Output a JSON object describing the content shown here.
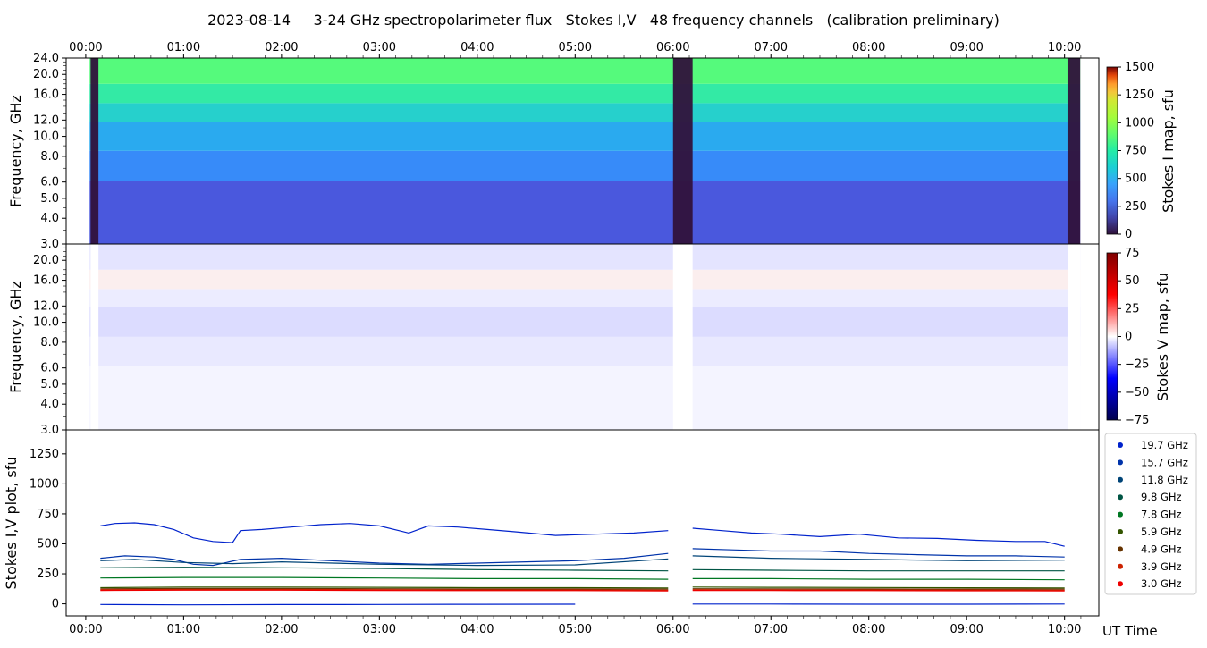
{
  "title": "2023-08-14     3-24 GHz spectropolarimeter flux   Stokes I,V   48 frequency channels   (calibration preliminary)",
  "time_ticks": [
    "00:00",
    "01:00",
    "02:00",
    "03:00",
    "04:00",
    "05:00",
    "06:00",
    "07:00",
    "08:00",
    "09:00",
    "10:00"
  ],
  "time_axis_label": "UT Time",
  "chart_data": [
    {
      "type": "heatmap",
      "name": "stokes-i-map",
      "ylabel": "Frequency, GHz",
      "y_ticks": [
        "24.0",
        "20.0",
        "16.0",
        "12.0",
        "10.0",
        "8.0",
        "6.0",
        "5.0",
        "4.0",
        "3.0"
      ],
      "y_tick_values": [
        24,
        20,
        16,
        12,
        10,
        8,
        6,
        5,
        4,
        3
      ],
      "ylim": [
        3,
        24
      ],
      "y_scale": "log",
      "xlim_hours": [
        -0.2,
        10.35
      ],
      "colorbar_label": "Stokes I map, sfu",
      "colorbar_ticks": [
        "1500",
        "1250",
        "1000",
        "750",
        "500",
        "250",
        "0"
      ],
      "colorbar_values": [
        1500,
        1250,
        1000,
        750,
        500,
        250,
        0
      ],
      "colorbar_range": [
        0,
        1500
      ],
      "colormap": "turbo",
      "bands": [
        {
          "f_low": 3.0,
          "f_high": 6.1,
          "value": 150
        },
        {
          "f_low": 6.1,
          "f_high": 8.5,
          "value": 260
        },
        {
          "f_low": 8.5,
          "f_high": 11.8,
          "value": 330
        },
        {
          "f_low": 11.8,
          "f_high": 14.5,
          "value": 430
        },
        {
          "f_low": 14.5,
          "f_high": 18.0,
          "value": 520
        },
        {
          "f_low": 18.0,
          "f_high": 24.0,
          "value": 620
        }
      ],
      "data_gaps_hours": [
        [
          0.05,
          0.13
        ],
        [
          6.0,
          6.2
        ],
        [
          10.03,
          10.16
        ]
      ]
    },
    {
      "type": "heatmap",
      "name": "stokes-v-map",
      "ylabel": "Frequency, GHz",
      "y_ticks": [
        "20.0",
        "16.0",
        "12.0",
        "10.0",
        "8.0",
        "6.0",
        "5.0",
        "4.0",
        "3.0"
      ],
      "y_tick_values": [
        20,
        16,
        12,
        10,
        8,
        6,
        5,
        4,
        3
      ],
      "ylim": [
        3,
        24
      ],
      "y_scale": "log",
      "colorbar_label": "Stokes V map, sfu",
      "colorbar_ticks": [
        "75",
        "50",
        "25",
        "0",
        "−25",
        "−50",
        "−75"
      ],
      "colorbar_values": [
        75,
        50,
        25,
        0,
        -25,
        -50,
        -75
      ],
      "colorbar_range": [
        -75,
        75
      ],
      "colormap": "seismic"
    },
    {
      "type": "line",
      "name": "stokes-iv-plot",
      "ylabel": "Stokes I,V plot, sfu",
      "y_ticks": [
        "1250",
        "1000",
        "750",
        "500",
        "250",
        "0"
      ],
      "y_tick_values": [
        1250,
        1000,
        750,
        500,
        250,
        0
      ],
      "ylim": [
        -100,
        1450
      ],
      "legend_position": "right",
      "series": [
        {
          "name": "19.7 GHz",
          "color": "#0022cc",
          "x": [
            0.15,
            0.3,
            0.5,
            0.7,
            0.9,
            1.1,
            1.3,
            1.5,
            1.58,
            1.8,
            2.1,
            2.4,
            2.7,
            3.0,
            3.2,
            3.3,
            3.5,
            3.8,
            4.1,
            4.4,
            4.8,
            5.2,
            5.6,
            5.95,
            6.2,
            6.5,
            6.8,
            7.1,
            7.5,
            7.9,
            8.3,
            8.7,
            9.1,
            9.5,
            9.8,
            10.0
          ],
          "y": [
            650,
            670,
            675,
            660,
            620,
            550,
            520,
            510,
            610,
            620,
            640,
            660,
            670,
            650,
            610,
            590,
            650,
            640,
            620,
            600,
            570,
            580,
            590,
            610,
            630,
            610,
            590,
            580,
            560,
            580,
            550,
            545,
            530,
            520,
            520,
            480
          ]
        },
        {
          "name": "15.7 GHz",
          "color": "#0033aa",
          "x": [
            0.15,
            0.4,
            0.7,
            0.9,
            1.1,
            1.3,
            1.58,
            2.0,
            2.5,
            3.0,
            3.5,
            4.0,
            4.5,
            5.0,
            5.5,
            5.95,
            6.2,
            6.6,
            7.0,
            7.5,
            8.0,
            8.5,
            9.0,
            9.5,
            10.0
          ],
          "y": [
            380,
            400,
            390,
            370,
            330,
            320,
            370,
            380,
            360,
            340,
            330,
            340,
            350,
            360,
            380,
            420,
            460,
            450,
            440,
            440,
            420,
            410,
            400,
            400,
            390
          ]
        },
        {
          "name": "11.8 GHz",
          "color": "#004477",
          "x": [
            0.15,
            0.5,
            1.0,
            1.5,
            2.0,
            3.0,
            4.0,
            5.0,
            5.95,
            6.2,
            7.0,
            8.0,
            9.0,
            10.0
          ],
          "y": [
            360,
            370,
            345,
            335,
            350,
            330,
            320,
            325,
            375,
            400,
            380,
            370,
            360,
            365
          ]
        },
        {
          "name": "9.8 GHz",
          "color": "#005544",
          "x": [
            0.15,
            1.0,
            2.0,
            3.0,
            4.0,
            5.0,
            5.95,
            6.2,
            7.0,
            8.0,
            9.0,
            10.0
          ],
          "y": [
            300,
            305,
            300,
            295,
            285,
            280,
            275,
            285,
            280,
            275,
            275,
            275
          ]
        },
        {
          "name": "7.8 GHz",
          "color": "#007722",
          "x": [
            0.15,
            1.0,
            2.0,
            3.0,
            4.0,
            5.0,
            5.95,
            6.2,
            7.0,
            8.0,
            9.0,
            10.0
          ],
          "y": [
            215,
            220,
            220,
            215,
            210,
            210,
            205,
            210,
            210,
            205,
            205,
            200
          ]
        },
        {
          "name": "5.9 GHz",
          "color": "#335500",
          "x": [
            0.15,
            1.0,
            2.0,
            3.0,
            4.0,
            5.0,
            5.95,
            6.2,
            7.0,
            8.0,
            9.0,
            10.0
          ],
          "y": [
            135,
            140,
            140,
            138,
            135,
            135,
            132,
            140,
            138,
            136,
            134,
            132
          ]
        },
        {
          "name": "4.9 GHz",
          "color": "#663300",
          "x": [
            0.15,
            1.0,
            2.0,
            3.0,
            4.0,
            5.0,
            5.95,
            6.2,
            7.0,
            8.0,
            9.0,
            10.0
          ],
          "y": [
            125,
            128,
            128,
            126,
            124,
            124,
            122,
            126,
            125,
            124,
            123,
            122
          ]
        },
        {
          "name": "3.9 GHz",
          "color": "#cc2200",
          "x": [
            0.15,
            1.0,
            2.0,
            3.0,
            4.0,
            5.0,
            5.95,
            6.2,
            7.0,
            8.0,
            9.0,
            10.0
          ],
          "y": [
            118,
            120,
            120,
            118,
            116,
            116,
            114,
            118,
            117,
            116,
            115,
            114
          ]
        },
        {
          "name": "3.0 GHz",
          "color": "#ee0000",
          "x": [
            0.15,
            1.0,
            2.0,
            3.0,
            4.0,
            5.0,
            5.95,
            6.2,
            7.0,
            8.0,
            9.0,
            10.0
          ],
          "y": [
            112,
            114,
            114,
            112,
            110,
            110,
            108,
            112,
            111,
            110,
            109,
            108
          ]
        },
        {
          "name": "",
          "color": "#0022cc",
          "x": [
            0.15,
            1.0,
            2.0,
            3.0,
            4.0,
            5.0,
            6.2,
            7.0,
            8.0,
            9.0,
            10.0
          ],
          "y": [
            -5,
            -8,
            -6,
            -5,
            -4,
            -3,
            -2,
            -2,
            -3,
            -3,
            -2
          ]
        }
      ]
    }
  ]
}
